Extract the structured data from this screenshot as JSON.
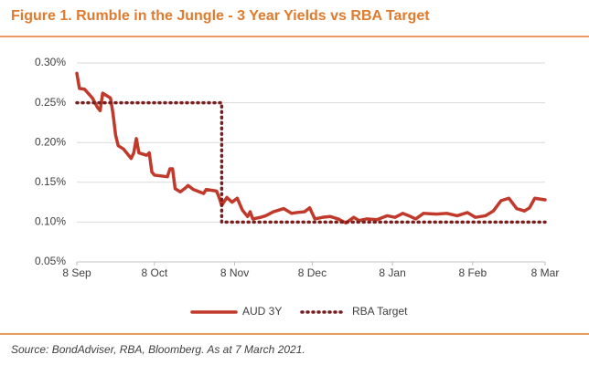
{
  "chart_data": {
    "type": "line",
    "title": "Figure 1. Rumble in the Jungle - 3 Year Yields vs RBA Target",
    "source": "Source: BondAdviser, RBA, Bloomberg. As at 7 March 2021.",
    "xlim": [
      0,
      181
    ],
    "xticks": [
      {
        "value": 0,
        "label": "8 Sep"
      },
      {
        "value": 30,
        "label": "8 Oct"
      },
      {
        "value": 61,
        "label": "8 Nov"
      },
      {
        "value": 91,
        "label": "8 Dec"
      },
      {
        "value": 122,
        "label": "8 Jan"
      },
      {
        "value": 153,
        "label": "8 Feb"
      },
      {
        "value": 181,
        "label": "8 Mar"
      }
    ],
    "ylim": [
      0.05,
      0.3
    ],
    "yticks": [
      {
        "value": 0.05,
        "label": "0.05%"
      },
      {
        "value": 0.1,
        "label": "0.10%"
      },
      {
        "value": 0.15,
        "label": "0.15%"
      },
      {
        "value": 0.2,
        "label": "0.20%"
      },
      {
        "value": 0.25,
        "label": "0.25%"
      },
      {
        "value": 0.3,
        "label": "0.30%"
      }
    ],
    "grid": true,
    "legend": "bottom",
    "series": [
      {
        "name": "AUD 3Y",
        "color": "#c0392b",
        "style": "solid",
        "x": [
          0,
          1,
          3,
          6,
          8,
          9,
          10,
          13,
          14,
          15,
          16,
          18,
          21,
          22,
          23,
          24,
          27,
          28,
          29,
          30,
          35,
          36,
          37,
          38,
          40,
          42,
          43,
          45,
          49,
          50,
          54,
          55,
          56,
          58,
          60,
          62,
          64,
          66,
          67,
          68,
          71,
          73,
          76,
          80,
          83,
          85,
          88,
          90,
          92,
          95,
          98,
          101,
          104,
          107,
          109,
          112,
          116,
          120,
          123,
          126,
          129,
          131,
          134,
          139,
          143,
          147,
          151,
          154,
          158,
          161,
          164,
          167,
          170,
          173,
          175,
          177,
          179,
          181
        ],
        "values": [
          0.287,
          0.268,
          0.267,
          0.256,
          0.244,
          0.24,
          0.262,
          0.256,
          0.236,
          0.209,
          0.196,
          0.192,
          0.18,
          0.187,
          0.205,
          0.187,
          0.184,
          0.187,
          0.163,
          0.159,
          0.157,
          0.167,
          0.167,
          0.142,
          0.138,
          0.143,
          0.146,
          0.141,
          0.136,
          0.141,
          0.139,
          0.131,
          0.121,
          0.131,
          0.125,
          0.13,
          0.115,
          0.107,
          0.113,
          0.104,
          0.106,
          0.108,
          0.113,
          0.117,
          0.111,
          0.112,
          0.113,
          0.118,
          0.104,
          0.106,
          0.107,
          0.104,
          0.099,
          0.106,
          0.102,
          0.104,
          0.103,
          0.108,
          0.106,
          0.111,
          0.107,
          0.104,
          0.111,
          0.11,
          0.111,
          0.108,
          0.112,
          0.106,
          0.108,
          0.114,
          0.127,
          0.13,
          0.117,
          0.114,
          0.118,
          0.13,
          0.129,
          0.128
        ]
      },
      {
        "name": "RBA Target",
        "color": "#7b1e1e",
        "style": "dotted",
        "x": [
          0,
          56,
          56,
          181
        ],
        "values": [
          0.25,
          0.25,
          0.1,
          0.1
        ]
      }
    ]
  }
}
